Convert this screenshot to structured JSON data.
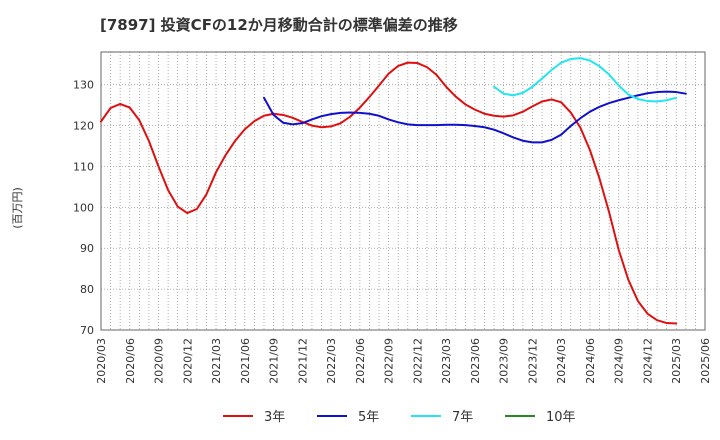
{
  "chart_data": {
    "type": "line",
    "title": "[7897]  投資CFの12か月移動合計の標準偏差の推移",
    "ylabel": "(百万円)",
    "xlabel": "",
    "ylim": [
      70,
      138
    ],
    "yticks": [
      70,
      80,
      90,
      100,
      110,
      120,
      130
    ],
    "grid": true,
    "legend_position": "bottom",
    "x_tick_labels": [
      "2020/03",
      "2020/06",
      "2020/09",
      "2020/12",
      "2021/03",
      "2021/06",
      "2021/09",
      "2021/12",
      "2022/03",
      "2022/06",
      "2022/09",
      "2022/12",
      "2023/03",
      "2023/06",
      "2023/09",
      "2023/12",
      "2024/03",
      "2024/06",
      "2024/09",
      "2024/12",
      "2025/03",
      "2025/06"
    ],
    "months": [
      "2020/03",
      "2020/04",
      "2020/05",
      "2020/06",
      "2020/07",
      "2020/08",
      "2020/09",
      "2020/10",
      "2020/11",
      "2020/12",
      "2021/01",
      "2021/02",
      "2021/03",
      "2021/04",
      "2021/05",
      "2021/06",
      "2021/07",
      "2021/08",
      "2021/09",
      "2021/10",
      "2021/11",
      "2021/12",
      "2022/01",
      "2022/02",
      "2022/03",
      "2022/04",
      "2022/05",
      "2022/06",
      "2022/07",
      "2022/08",
      "2022/09",
      "2022/10",
      "2022/11",
      "2022/12",
      "2023/01",
      "2023/02",
      "2023/03",
      "2023/04",
      "2023/05",
      "2023/06",
      "2023/07",
      "2023/08",
      "2023/09",
      "2023/10",
      "2023/11",
      "2023/12",
      "2024/01",
      "2024/02",
      "2024/03",
      "2024/04",
      "2024/05",
      "2024/06",
      "2024/07",
      "2024/08",
      "2024/09",
      "2024/10",
      "2024/11",
      "2024/12",
      "2025/01",
      "2025/02",
      "2025/03",
      "2025/04",
      "2025/05",
      "2025/06"
    ],
    "series": [
      {
        "name": "3年",
        "color": "#dd1111",
        "start": "2020/03",
        "values": [
          121,
          124.3,
          125.3,
          124.4,
          121.3,
          116.2,
          110,
          104.2,
          100.2,
          98.6,
          99.6,
          103.2,
          108.6,
          112.8,
          116.3,
          119.1,
          121.1,
          122.4,
          122.9,
          122.6,
          121.9,
          120.9,
          120,
          119.6,
          119.8,
          120.6,
          122.2,
          124.4,
          127,
          129.8,
          132.7,
          134.6,
          135.4,
          135.3,
          134.3,
          132.4,
          129.5,
          127.1,
          125.2,
          123.9,
          122.9,
          122.4,
          122.2,
          122.5,
          123.4,
          124.7,
          125.9,
          126.4,
          125.7,
          123.2,
          119.5,
          114,
          107,
          98.8,
          89.6,
          82.3,
          77.1,
          74,
          72.4,
          71.7,
          71.6
        ]
      },
      {
        "name": "5年",
        "color": "#1111cc",
        "start": "2021/08",
        "values": [
          126.8,
          122.6,
          120.7,
          120.3,
          120.6,
          121.5,
          122.3,
          122.8,
          123.1,
          123.2,
          123.1,
          122.9,
          122.4,
          121.5,
          120.8,
          120.3,
          120.1,
          120.1,
          120.1,
          120.2,
          120.2,
          120.1,
          119.9,
          119.6,
          119,
          118.1,
          117.1,
          116.3,
          115.9,
          115.9,
          116.5,
          117.8,
          119.9,
          121.8,
          123.4,
          124.6,
          125.5,
          126.2,
          126.8,
          127.4,
          127.9,
          128.2,
          128.3,
          128.2,
          127.8
        ]
      },
      {
        "name": "7年",
        "color": "#22e5f0",
        "start": "2023/08",
        "values": [
          129.5,
          127.8,
          127.4,
          128,
          129.5,
          131.5,
          133.6,
          135.4,
          136.3,
          136.5,
          135.9,
          134.5,
          132.5,
          129.8,
          127.6,
          126.5,
          126,
          125.9,
          126.2,
          126.8
        ]
      },
      {
        "name": "10年",
        "color": "#228822",
        "start": "2025/03",
        "values": []
      }
    ]
  }
}
